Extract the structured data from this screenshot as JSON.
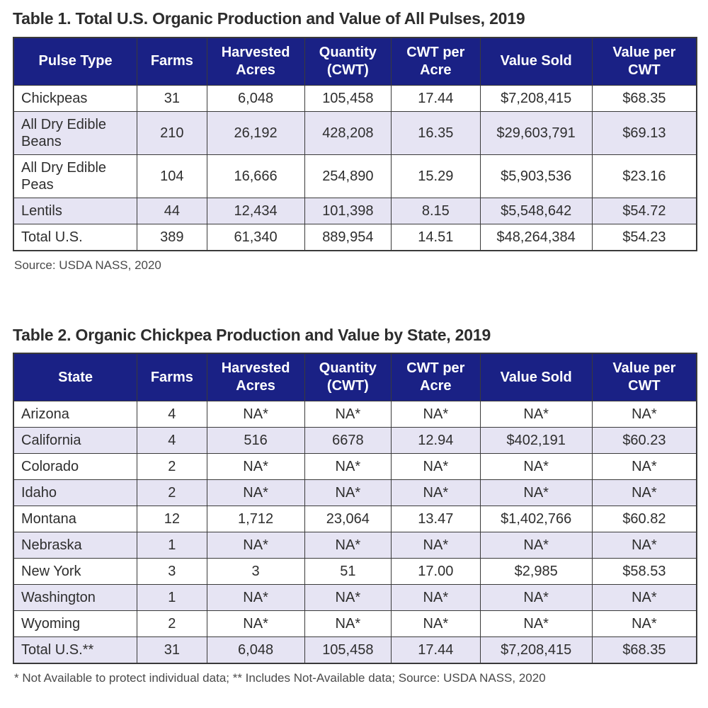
{
  "colors": {
    "header_bg": "#1a2185",
    "header_text": "#ffffff",
    "row_alt_bg": "#e6e4f3",
    "border": "#3a3a3a",
    "body_text": "#2e2e2e",
    "muted_text": "#4a4a4a"
  },
  "table1": {
    "title": "Table 1. Total U.S. Organic Production and Value of All Pulses, 2019",
    "headers": [
      "Pulse Type",
      "Farms",
      "Harvested Acres",
      "Quantity (CWT)",
      "CWT per Acre",
      "Value Sold",
      "Value per CWT"
    ],
    "rows": [
      [
        "Chickpeas",
        "31",
        "6,048",
        "105,458",
        "17.44",
        "$7,208,415",
        "$68.35"
      ],
      [
        "All Dry Edible Beans",
        "210",
        "26,192",
        "428,208",
        "16.35",
        "$29,603,791",
        "$69.13"
      ],
      [
        "All Dry Edible Peas",
        "104",
        "16,666",
        "254,890",
        "15.29",
        "$5,903,536",
        "$23.16"
      ],
      [
        "Lentils",
        "44",
        "12,434",
        "101,398",
        "8.15",
        "$5,548,642",
        "$54.72"
      ],
      [
        "Total U.S.",
        "389",
        "61,340",
        "889,954",
        "14.51",
        "$48,264,384",
        "$54.23"
      ]
    ],
    "source": "Source: USDA NASS, 2020"
  },
  "table2": {
    "title": "Table 2. Organic Chickpea Production and Value by State, 2019",
    "headers": [
      "State",
      "Farms",
      "Harvested Acres",
      "Quantity (CWT)",
      "CWT per Acre",
      "Value Sold",
      "Value per CWT"
    ],
    "rows": [
      [
        "Arizona",
        "4",
        "NA*",
        "NA*",
        "NA*",
        "NA*",
        "NA*"
      ],
      [
        "California",
        "4",
        "516",
        "6678",
        "12.94",
        "$402,191",
        "$60.23"
      ],
      [
        "Colorado",
        "2",
        "NA*",
        "NA*",
        "NA*",
        "NA*",
        "NA*"
      ],
      [
        "Idaho",
        "2",
        "NA*",
        "NA*",
        "NA*",
        "NA*",
        "NA*"
      ],
      [
        "Montana",
        "12",
        "1,712",
        "23,064",
        "13.47",
        "$1,402,766",
        "$60.82"
      ],
      [
        "Nebraska",
        "1",
        "NA*",
        "NA*",
        "NA*",
        "NA*",
        "NA*"
      ],
      [
        "New York",
        "3",
        "3",
        "51",
        "17.00",
        "$2,985",
        "$58.53"
      ],
      [
        "Washington",
        "1",
        "NA*",
        "NA*",
        "NA*",
        "NA*",
        "NA*"
      ],
      [
        "Wyoming",
        "2",
        "NA*",
        "NA*",
        "NA*",
        "NA*",
        "NA*"
      ],
      [
        "Total U.S.**",
        "31",
        "6,048",
        "105,458",
        "17.44",
        "$7,208,415",
        "$68.35"
      ]
    ],
    "footnote": "* Not Available to protect individual data;  ** Includes Not-Available data;  Source: USDA NASS, 2020"
  }
}
